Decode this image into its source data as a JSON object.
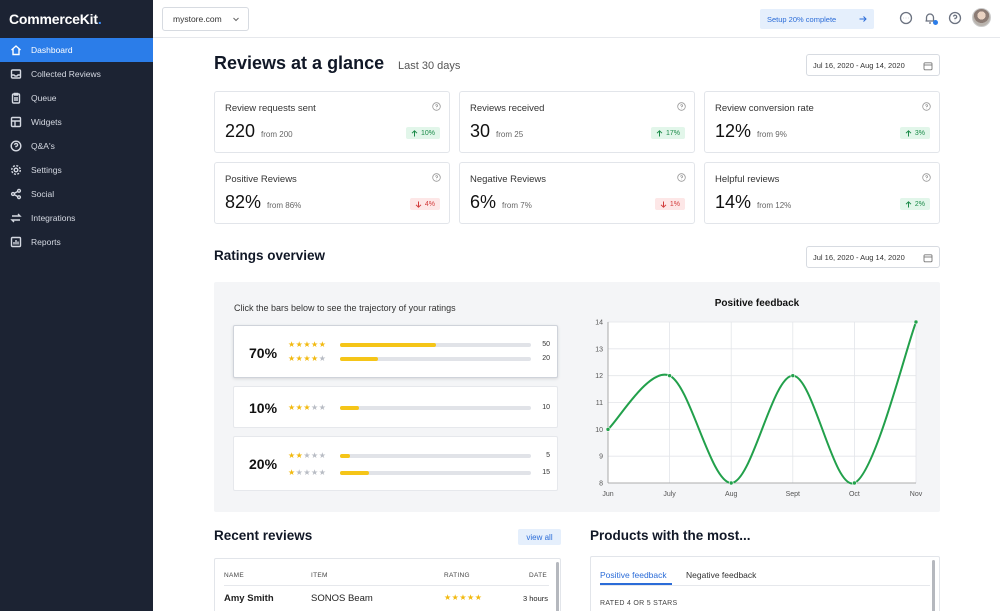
{
  "app": {
    "logo_text": "CommerceKit",
    "logo_dot": "."
  },
  "sidebar": {
    "items": [
      {
        "label": "Dashboard",
        "icon": "home-icon",
        "active": true
      },
      {
        "label": "Collected Reviews",
        "icon": "inbox-icon",
        "active": false
      },
      {
        "label": "Queue",
        "icon": "clipboard-icon",
        "active": false
      },
      {
        "label": "Widgets",
        "icon": "widgets-icon",
        "active": false
      },
      {
        "label": "Q&A's",
        "icon": "question-icon",
        "active": false
      },
      {
        "label": "Settings",
        "icon": "gear-icon",
        "active": false
      },
      {
        "label": "Social",
        "icon": "share-icon",
        "active": false
      },
      {
        "label": "Integrations",
        "icon": "swap-icon",
        "active": false
      },
      {
        "label": "Reports",
        "icon": "report-icon",
        "active": false
      }
    ]
  },
  "topbar": {
    "store": "mystore.com",
    "setup_label": "Setup 20% complete",
    "icons": [
      "chat-icon",
      "bell-icon",
      "help-icon",
      "avatar"
    ]
  },
  "header": {
    "title": "Reviews at a glance",
    "subtitle": "Last 30 days",
    "date_range": "Jul 16, 2020 - Aug 14, 2020"
  },
  "stats": [
    {
      "label": "Review requests sent",
      "value": "220",
      "from": "from 200",
      "change": "10%",
      "direction": "up"
    },
    {
      "label": "Reviews received",
      "value": "30",
      "from": "from 25",
      "change": "17%",
      "direction": "up"
    },
    {
      "label": "Review conversion rate",
      "value": "12%",
      "from": "from 9%",
      "change": "3%",
      "direction": "up"
    },
    {
      "label": "Positive Reviews",
      "value": "82%",
      "from": "from 86%",
      "change": "4%",
      "direction": "down"
    },
    {
      "label": "Negative Reviews",
      "value": "6%",
      "from": "from 7%",
      "change": "1%",
      "direction": "down"
    },
    {
      "label": "Helpful reviews",
      "value": "14%",
      "from": "from 12%",
      "change": "2%",
      "direction": "up"
    }
  ],
  "ratings": {
    "title": "Ratings overview",
    "date_range": "Jul 16, 2020 - Aug 14, 2020",
    "hint": "Click the bars below to see the trajectory of your ratings",
    "groups": [
      {
        "pct": "70%",
        "selected": true,
        "rows": [
          {
            "stars": 5,
            "count": 50,
            "fill": 0.5
          },
          {
            "stars": 4,
            "count": 20,
            "fill": 0.2
          }
        ]
      },
      {
        "pct": "10%",
        "selected": false,
        "rows": [
          {
            "stars": 3,
            "count": 10,
            "fill": 0.1
          }
        ]
      },
      {
        "pct": "20%",
        "selected": false,
        "rows": [
          {
            "stars": 2,
            "count": 5,
            "fill": 0.05
          },
          {
            "stars": 1,
            "count": 15,
            "fill": 0.15
          }
        ]
      }
    ]
  },
  "chart_data": {
    "type": "line",
    "title": "Positive feedback",
    "categories": [
      "Jun",
      "July",
      "Aug",
      "Sept",
      "Oct",
      "Nov"
    ],
    "series": [
      {
        "values": [
          10,
          12,
          8,
          12,
          8,
          14
        ],
        "color": "#22a04b"
      }
    ],
    "ylim": [
      8,
      14
    ],
    "yticks": [
      8,
      9,
      10,
      11,
      12,
      13,
      14
    ],
    "grid": true
  },
  "recent": {
    "title": "Recent reviews",
    "view_all": "view all",
    "columns": [
      "NAME",
      "ITEM",
      "RATING",
      "DATE"
    ],
    "rows": [
      {
        "name": "Amy Smith",
        "item": "SONOS Beam",
        "rating": 5,
        "date": "3 hours"
      }
    ]
  },
  "products": {
    "title": "Products with the most...",
    "tabs": [
      "Positive feedback",
      "Negative feedback"
    ],
    "active_tab": 0,
    "subheading": "RATED 4 OR 5 STARS"
  },
  "colors": {
    "sidebar_bg": "#1c2333",
    "accent": "#2b7de9",
    "star": "#f5c518",
    "up": "#1a8a48",
    "down": "#d23b3b",
    "line": "#22a04b"
  }
}
